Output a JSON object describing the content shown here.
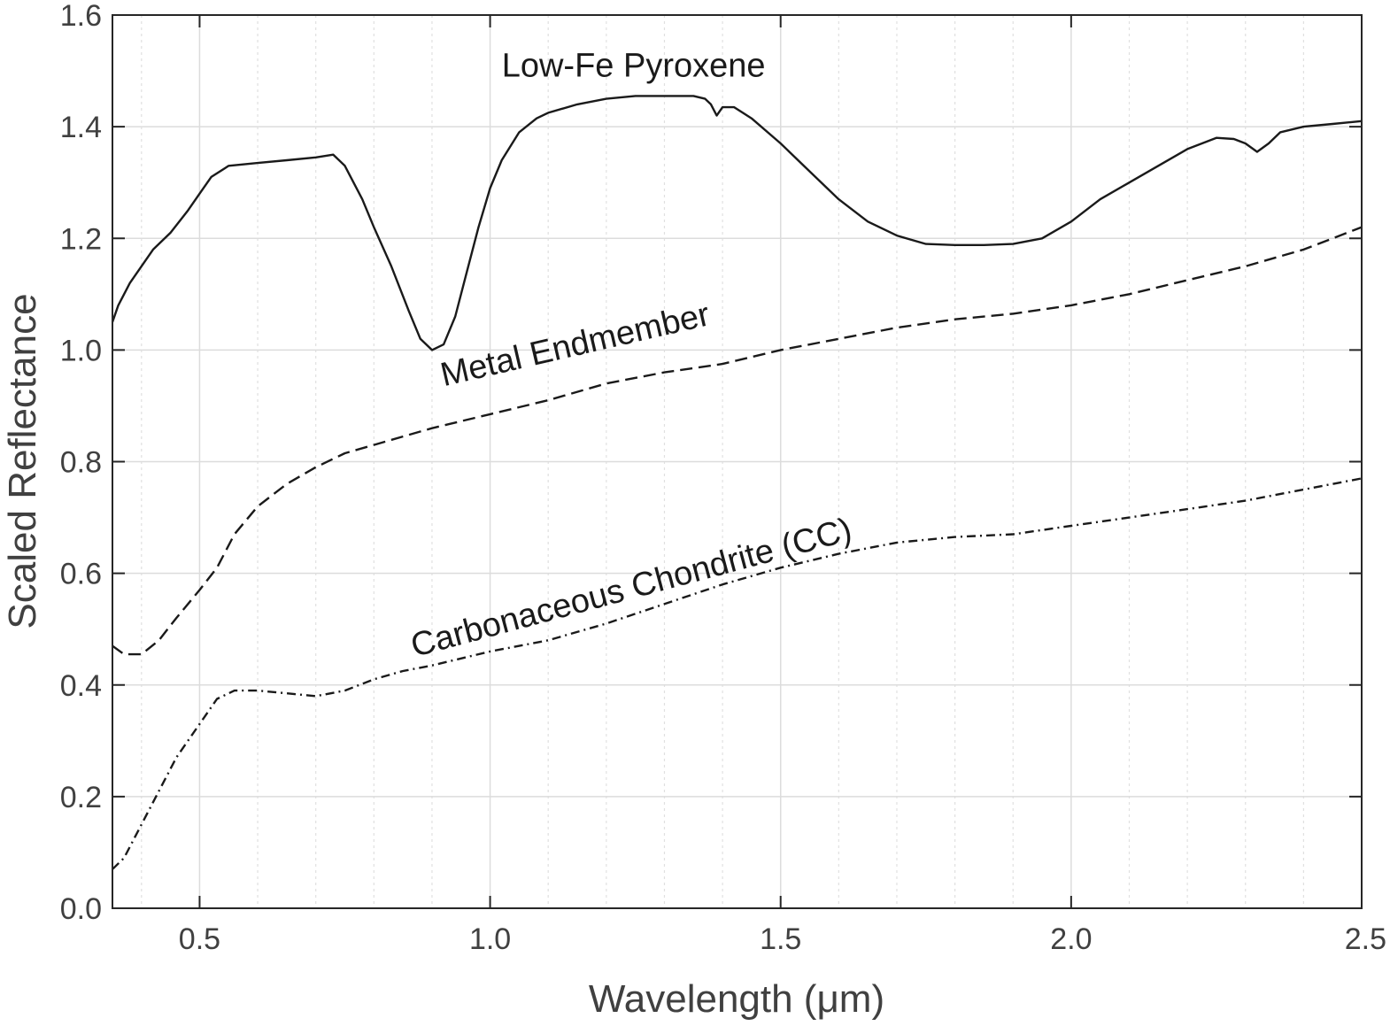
{
  "chart_data": {
    "type": "line",
    "title": "",
    "xlabel": "Wavelength (μm)",
    "ylabel": "Scaled Reflectance",
    "xlim": [
      0.35,
      2.5
    ],
    "ylim": [
      0.0,
      1.6
    ],
    "grid": true,
    "x_ticks": [
      0.5,
      1.0,
      1.5,
      2.0,
      2.5
    ],
    "x_tick_labels": [
      "0.5",
      "1.0",
      "1.5",
      "2.0",
      "2.5"
    ],
    "y_ticks": [
      0.0,
      0.2,
      0.4,
      0.6,
      0.8,
      1.0,
      1.2,
      1.4,
      1.6
    ],
    "y_tick_labels": [
      "0.0",
      "0.2",
      "0.4",
      "0.6",
      "0.8",
      "1.0",
      "1.2",
      "1.4",
      "1.6"
    ],
    "x_minor_ticks": [
      0.4,
      0.6,
      0.7,
      0.8,
      0.9,
      1.1,
      1.2,
      1.3,
      1.4,
      1.6,
      1.7,
      1.8,
      1.9,
      2.1,
      2.2,
      2.3,
      2.4
    ],
    "series": [
      {
        "name": "Low-Fe Pyroxene",
        "style": "solid",
        "x": [
          0.35,
          0.36,
          0.38,
          0.4,
          0.42,
          0.45,
          0.48,
          0.5,
          0.52,
          0.55,
          0.6,
          0.65,
          0.7,
          0.73,
          0.75,
          0.78,
          0.8,
          0.83,
          0.86,
          0.88,
          0.9,
          0.92,
          0.94,
          0.96,
          0.98,
          1.0,
          1.02,
          1.05,
          1.08,
          1.1,
          1.15,
          1.2,
          1.25,
          1.3,
          1.35,
          1.37,
          1.38,
          1.39,
          1.4,
          1.42,
          1.45,
          1.5,
          1.55,
          1.6,
          1.65,
          1.7,
          1.75,
          1.8,
          1.85,
          1.9,
          1.95,
          2.0,
          2.05,
          2.1,
          2.15,
          2.2,
          2.25,
          2.28,
          2.3,
          2.32,
          2.34,
          2.36,
          2.4,
          2.45,
          2.5
        ],
        "y": [
          1.05,
          1.08,
          1.12,
          1.15,
          1.18,
          1.21,
          1.25,
          1.28,
          1.31,
          1.33,
          1.335,
          1.34,
          1.345,
          1.35,
          1.33,
          1.27,
          1.22,
          1.15,
          1.07,
          1.02,
          1.0,
          1.01,
          1.06,
          1.14,
          1.22,
          1.29,
          1.34,
          1.39,
          1.415,
          1.425,
          1.44,
          1.45,
          1.455,
          1.455,
          1.455,
          1.45,
          1.44,
          1.42,
          1.435,
          1.435,
          1.415,
          1.37,
          1.32,
          1.27,
          1.23,
          1.205,
          1.19,
          1.188,
          1.188,
          1.19,
          1.2,
          1.23,
          1.27,
          1.3,
          1.33,
          1.36,
          1.38,
          1.378,
          1.37,
          1.355,
          1.37,
          1.39,
          1.4,
          1.405,
          1.41
        ]
      },
      {
        "name": "Metal Endmember",
        "style": "dashed",
        "x": [
          0.35,
          0.37,
          0.4,
          0.43,
          0.46,
          0.5,
          0.53,
          0.56,
          0.6,
          0.65,
          0.7,
          0.75,
          0.8,
          0.85,
          0.9,
          1.0,
          1.1,
          1.2,
          1.3,
          1.4,
          1.5,
          1.6,
          1.7,
          1.8,
          1.9,
          2.0,
          2.1,
          2.2,
          2.3,
          2.4,
          2.45,
          2.5
        ],
        "y": [
          0.47,
          0.455,
          0.455,
          0.48,
          0.52,
          0.57,
          0.61,
          0.67,
          0.72,
          0.76,
          0.79,
          0.815,
          0.83,
          0.845,
          0.86,
          0.885,
          0.91,
          0.94,
          0.96,
          0.975,
          1.0,
          1.02,
          1.04,
          1.055,
          1.065,
          1.08,
          1.1,
          1.125,
          1.15,
          1.18,
          1.2,
          1.22
        ]
      },
      {
        "name": "Carbonaceous Chondrite (CC)",
        "style": "dashdot",
        "x": [
          0.35,
          0.37,
          0.4,
          0.43,
          0.46,
          0.5,
          0.53,
          0.56,
          0.6,
          0.65,
          0.7,
          0.75,
          0.8,
          0.85,
          0.9,
          1.0,
          1.1,
          1.2,
          1.3,
          1.4,
          1.5,
          1.6,
          1.7,
          1.8,
          1.9,
          2.0,
          2.1,
          2.2,
          2.3,
          2.4,
          2.45,
          2.5
        ],
        "y": [
          0.07,
          0.09,
          0.15,
          0.21,
          0.27,
          0.33,
          0.375,
          0.39,
          0.39,
          0.385,
          0.38,
          0.39,
          0.41,
          0.425,
          0.435,
          0.46,
          0.48,
          0.51,
          0.545,
          0.58,
          0.61,
          0.635,
          0.655,
          0.665,
          0.67,
          0.685,
          0.7,
          0.715,
          0.73,
          0.75,
          0.76,
          0.77
        ]
      }
    ],
    "annotations": [
      {
        "text": "Low-Fe Pyroxene",
        "x": 1.02,
        "y": 1.49,
        "rotation": 0
      },
      {
        "text": "Metal Endmember",
        "x": 0.92,
        "y": 0.935,
        "rotation": -13
      },
      {
        "text": "Carbonaceous Chondrite (CC)",
        "x": 0.87,
        "y": 0.45,
        "rotation": -15
      }
    ]
  }
}
